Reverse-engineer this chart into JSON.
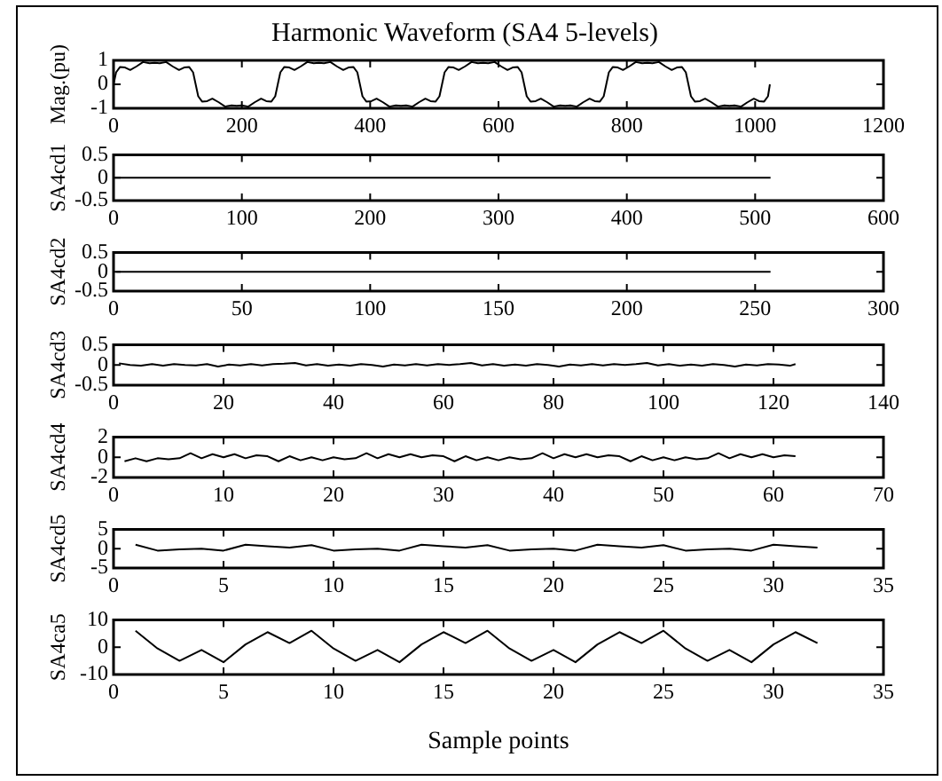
{
  "chart_data": [
    {
      "type": "line",
      "title": "Harmonic Waveform (SA4 5-levels)",
      "ylabel": "Mag.(pu)",
      "color": "#000000",
      "xlim": [
        0,
        1200
      ],
      "xticks": [
        0,
        200,
        400,
        600,
        800,
        1000,
        1200
      ],
      "ylim": [
        -1,
        1
      ],
      "yticks": [
        -1,
        0,
        1
      ],
      "x": [
        0,
        4,
        10,
        18,
        26,
        36,
        46,
        56,
        64,
        72,
        82,
        92,
        102,
        110,
        118,
        124,
        128,
        132,
        138,
        146,
        154,
        164,
        174,
        184,
        192,
        200,
        210,
        220,
        230,
        238,
        246,
        252,
        256,
        260,
        266,
        274,
        282,
        292,
        302,
        312,
        320,
        328,
        338,
        348,
        358,
        366,
        374,
        380,
        384,
        388,
        394,
        402,
        410,
        420,
        430,
        440,
        448,
        456,
        466,
        476,
        486,
        494,
        502,
        508,
        512,
        516,
        522,
        530,
        538,
        548,
        558,
        568,
        576,
        584,
        594,
        604,
        614,
        622,
        630,
        636,
        640,
        644,
        650,
        658,
        666,
        676,
        686,
        696,
        704,
        712,
        722,
        732,
        742,
        750,
        758,
        764,
        768,
        772,
        778,
        786,
        794,
        804,
        814,
        824,
        832,
        840,
        850,
        860,
        870,
        878,
        886,
        892,
        896,
        900,
        906,
        914,
        922,
        932,
        942,
        952,
        960,
        968,
        978,
        988,
        998,
        1006,
        1014,
        1020,
        1023
      ],
      "values": [
        0,
        0.5,
        0.72,
        0.7,
        0.6,
        0.75,
        0.93,
        0.88,
        0.9,
        0.88,
        0.93,
        0.75,
        0.6,
        0.7,
        0.72,
        0.5,
        0,
        -0.5,
        -0.72,
        -0.7,
        -0.6,
        -0.75,
        -0.93,
        -0.88,
        -0.9,
        -0.88,
        -0.93,
        -0.75,
        -0.6,
        -0.7,
        -0.72,
        -0.5,
        0,
        0.5,
        0.72,
        0.7,
        0.6,
        0.75,
        0.93,
        0.88,
        0.9,
        0.88,
        0.93,
        0.75,
        0.6,
        0.7,
        0.72,
        0.5,
        0,
        -0.5,
        -0.72,
        -0.7,
        -0.6,
        -0.75,
        -0.93,
        -0.88,
        -0.9,
        -0.88,
        -0.93,
        -0.75,
        -0.6,
        -0.7,
        -0.72,
        -0.5,
        0,
        0.5,
        0.72,
        0.7,
        0.6,
        0.75,
        0.93,
        0.88,
        0.9,
        0.88,
        0.93,
        0.75,
        0.6,
        0.7,
        0.72,
        0.5,
        0,
        -0.5,
        -0.72,
        -0.7,
        -0.6,
        -0.75,
        -0.93,
        -0.88,
        -0.9,
        -0.88,
        -0.93,
        -0.75,
        -0.6,
        -0.7,
        -0.72,
        -0.5,
        0,
        0.5,
        0.72,
        0.7,
        0.6,
        0.75,
        0.93,
        0.88,
        0.9,
        0.88,
        0.93,
        0.75,
        0.6,
        0.7,
        0.72,
        0.5,
        0,
        -0.5,
        -0.72,
        -0.7,
        -0.6,
        -0.75,
        -0.93,
        -0.88,
        -0.9,
        -0.88,
        -0.93,
        -0.75,
        -0.6,
        -0.7,
        -0.72,
        -0.5,
        0
      ]
    },
    {
      "type": "line",
      "ylabel": "SA4cd1",
      "color": "#000000",
      "xlim": [
        0,
        600
      ],
      "xticks": [
        0,
        100,
        200,
        300,
        400,
        500,
        600
      ],
      "ylim": [
        -0.5,
        0.5
      ],
      "yticks": [
        -0.5,
        0,
        0.5
      ],
      "x": [
        1,
        128,
        256,
        384,
        512
      ],
      "values": [
        0,
        0,
        0,
        0,
        0
      ]
    },
    {
      "type": "line",
      "ylabel": "SA4cd2",
      "color": "#000000",
      "xlim": [
        0,
        300
      ],
      "xticks": [
        0,
        50,
        100,
        150,
        200,
        250,
        300
      ],
      "ylim": [
        -0.5,
        0.5
      ],
      "yticks": [
        -0.5,
        0,
        0.5
      ],
      "x": [
        1,
        64,
        128,
        192,
        256
      ],
      "values": [
        0,
        0,
        0,
        0,
        0
      ]
    },
    {
      "type": "line",
      "ylabel": "SA4cd3",
      "color": "#000000",
      "xlim": [
        0,
        140
      ],
      "xticks": [
        0,
        20,
        40,
        60,
        80,
        100,
        120,
        140
      ],
      "ylim": [
        -0.5,
        0.5
      ],
      "yticks": [
        -0.5,
        0,
        0.5
      ],
      "x": [
        1,
        3,
        5,
        7,
        9,
        11,
        13,
        15,
        17,
        19,
        21,
        23,
        25,
        27,
        29,
        31,
        33,
        35,
        37,
        39,
        41,
        43,
        45,
        47,
        49,
        51,
        53,
        55,
        57,
        59,
        61,
        63,
        65,
        67,
        69,
        71,
        73,
        75,
        77,
        79,
        81,
        83,
        85,
        87,
        89,
        91,
        93,
        95,
        97,
        99,
        101,
        103,
        105,
        107,
        109,
        111,
        113,
        115,
        117,
        119,
        121,
        123,
        124
      ],
      "values": [
        0.04,
        0,
        -0.02,
        0.02,
        -0.02,
        0.02,
        0,
        -0.01,
        0.02,
        -0.04,
        0.01,
        -0.01,
        0.02,
        -0.01,
        0.02,
        0.03,
        0.05,
        -0.01,
        0.02,
        -0.02,
        0.01,
        -0.02,
        0.02,
        0,
        -0.04,
        0.01,
        -0.01,
        0.02,
        -0.01,
        0.02,
        0,
        0.02,
        0.05,
        -0.01,
        0.02,
        -0.02,
        0.01,
        -0.02,
        0.02,
        0,
        -0.04,
        0.01,
        -0.01,
        0.02,
        -0.01,
        0.02,
        0,
        0.02,
        0.05,
        -0.01,
        0.02,
        -0.02,
        0.01,
        -0.02,
        0.02,
        0,
        -0.04,
        0.01,
        -0.01,
        0.02,
        0.01,
        -0.02,
        0.02
      ]
    },
    {
      "type": "line",
      "ylabel": "SA4cd4",
      "color": "#000000",
      "xlim": [
        0,
        70
      ],
      "xticks": [
        0,
        10,
        20,
        30,
        40,
        50,
        60,
        70
      ],
      "ylim": [
        -2,
        2
      ],
      "yticks": [
        -2,
        0,
        2
      ],
      "x": [
        1,
        2,
        3,
        4,
        5,
        6,
        7,
        8,
        9,
        10,
        11,
        12,
        13,
        14,
        15,
        16,
        17,
        18,
        19,
        20,
        21,
        22,
        23,
        24,
        25,
        26,
        27,
        28,
        29,
        30,
        31,
        32,
        33,
        34,
        35,
        36,
        37,
        38,
        39,
        40,
        41,
        42,
        43,
        44,
        45,
        46,
        47,
        48,
        49,
        50,
        51,
        52,
        53,
        54,
        55,
        56,
        57,
        58,
        59,
        60,
        61,
        62
      ],
      "values": [
        -0.4,
        -0.1,
        -0.4,
        -0.1,
        -0.2,
        -0.1,
        0.4,
        -0.1,
        0.3,
        0,
        0.3,
        -0.1,
        0.2,
        0.1,
        -0.4,
        0.1,
        -0.3,
        0,
        -0.3,
        0,
        -0.2,
        -0.1,
        0.4,
        -0.1,
        0.3,
        0,
        0.3,
        0,
        0.2,
        0.1,
        -0.4,
        0.1,
        -0.3,
        0,
        -0.3,
        0,
        -0.2,
        -0.1,
        0.4,
        -0.1,
        0.3,
        0,
        0.3,
        0,
        0.2,
        0.1,
        -0.4,
        0.1,
        -0.3,
        0,
        -0.3,
        0,
        -0.2,
        -0.1,
        0.4,
        -0.1,
        0.3,
        0,
        0.3,
        0,
        0.2,
        0.1
      ]
    },
    {
      "type": "line",
      "ylabel": "SA4cd5",
      "color": "#000000",
      "xlim": [
        0,
        35
      ],
      "xticks": [
        0,
        5,
        10,
        15,
        20,
        25,
        30,
        35
      ],
      "ylim": [
        -5,
        5
      ],
      "yticks": [
        -5,
        0,
        5
      ],
      "x": [
        1,
        2,
        3,
        4,
        5,
        6,
        7,
        8,
        9,
        10,
        11,
        12,
        13,
        14,
        15,
        16,
        17,
        18,
        19,
        20,
        21,
        22,
        23,
        24,
        25,
        26,
        27,
        28,
        29,
        30,
        31,
        32
      ],
      "values": [
        1,
        -0.5,
        -0.2,
        0,
        -0.5,
        1,
        0.6,
        0.3,
        0.9,
        -0.5,
        -0.2,
        0,
        -0.5,
        1,
        0.6,
        0.3,
        0.9,
        -0.5,
        -0.2,
        0,
        -0.5,
        1,
        0.6,
        0.3,
        0.9,
        -0.5,
        -0.2,
        0,
        -0.5,
        1,
        0.6,
        0.3
      ]
    },
    {
      "type": "line",
      "ylabel": "SA4ca5",
      "xlabel": "Sample points",
      "color": "#000000",
      "xlim": [
        0,
        35
      ],
      "xticks": [
        0,
        5,
        10,
        15,
        20,
        25,
        30,
        35
      ],
      "ylim": [
        -10,
        10
      ],
      "yticks": [
        -10,
        0,
        10
      ],
      "x": [
        1,
        2,
        3,
        4,
        5,
        6,
        7,
        8,
        9,
        10,
        11,
        12,
        13,
        14,
        15,
        16,
        17,
        18,
        19,
        20,
        21,
        22,
        23,
        24,
        25,
        26,
        27,
        28,
        29,
        30,
        31,
        32
      ],
      "values": [
        6,
        -0.5,
        -5,
        -1,
        -5.5,
        1,
        5.5,
        1.5,
        6,
        -0.5,
        -5,
        -1,
        -5.5,
        1,
        5.5,
        1.5,
        6,
        -0.5,
        -5,
        -1,
        -5.5,
        1,
        5.5,
        1.5,
        6,
        -0.5,
        -5,
        -1,
        -5.5,
        1,
        5.5,
        1.5
      ]
    }
  ]
}
